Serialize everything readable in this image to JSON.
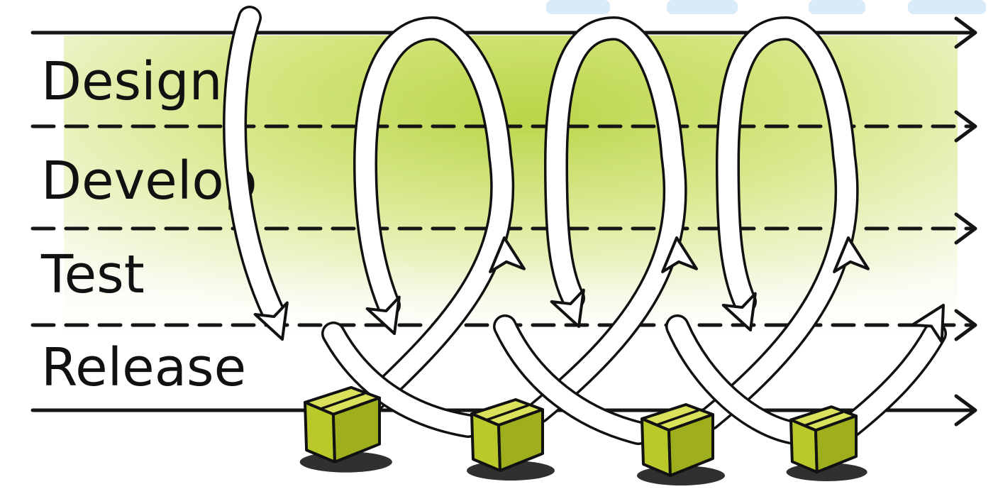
{
  "stages": [
    "Design",
    "Develop",
    "Test",
    "Release"
  ],
  "colors": {
    "ink": "#111111",
    "band_green": "#b6d33a",
    "band_green_light": "#e4efb0",
    "box_top": "#d9e25a",
    "box_front": "#b9c92a",
    "box_side": "#9fae1d"
  },
  "icons": {
    "lane_arrow": "arrow-right-icon",
    "loop": "cycle-arrow-icon",
    "release_box": "package-box-icon"
  }
}
